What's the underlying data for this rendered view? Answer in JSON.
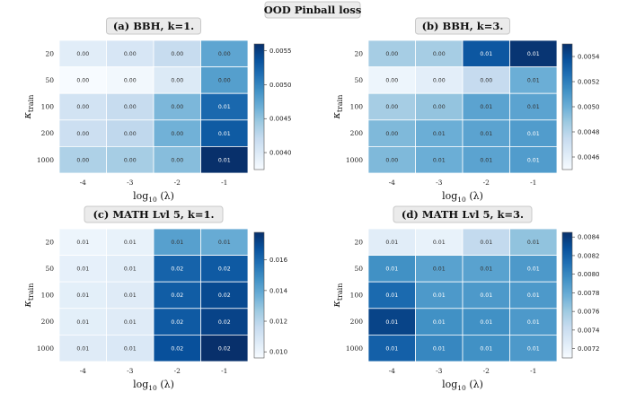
{
  "figure_title": "OOD Pinball loss",
  "chart_data": [
    {
      "type": "heatmap",
      "title": "(a) BBH, k=1.",
      "xlabel_main": "log",
      "xlabel_sub": "10",
      "xlabel_tail": "(λ)",
      "ylabel_main": "κ",
      "ylabel_sub": "train",
      "x_categories": [
        "-4",
        "-3",
        "-2",
        "-1"
      ],
      "y_categories": [
        "20",
        "50",
        "100",
        "200",
        "1000"
      ],
      "values": [
        [
          0.00395,
          0.00405,
          0.0042,
          0.00475
        ],
        [
          0.00375,
          0.0038,
          0.004,
          0.0048
        ],
        [
          0.0041,
          0.0042,
          0.0046,
          0.0052
        ],
        [
          0.00415,
          0.00425,
          0.00465,
          0.0053
        ],
        [
          0.00435,
          0.0044,
          0.00455,
          0.0056
        ]
      ],
      "labels": [
        [
          "0.00",
          "0.00",
          "0.00",
          "0.00"
        ],
        [
          "0.00",
          "0.00",
          "0.00",
          "0.00"
        ],
        [
          "0.00",
          "0.00",
          "0.00",
          "0.01"
        ],
        [
          "0.00",
          "0.00",
          "0.00",
          "0.01"
        ],
        [
          "0.00",
          "0.00",
          "0.00",
          "0.01"
        ]
      ],
      "vmin": 0.00375,
      "vmax": 0.0056,
      "colorbar_ticks": [
        0.004,
        0.0045,
        0.005,
        0.0055
      ],
      "colorbar_tick_labels": [
        "0.0040",
        "0.0045",
        "0.0050",
        "0.0055"
      ]
    },
    {
      "type": "heatmap",
      "title": "(b) BBH, k=3.",
      "xlabel_main": "log",
      "xlabel_sub": "10",
      "xlabel_tail": "(λ)",
      "ylabel_main": "κ",
      "ylabel_sub": "train",
      "x_categories": [
        "-4",
        "-3",
        "-2",
        "-1"
      ],
      "y_categories": [
        "20",
        "50",
        "100",
        "200",
        "1000"
      ],
      "values": [
        [
          0.00485,
          0.00485,
          0.00535,
          0.00548
        ],
        [
          0.00455,
          0.0046,
          0.00475,
          0.005
        ],
        [
          0.00485,
          0.0049,
          0.00505,
          0.00505
        ],
        [
          0.00495,
          0.005,
          0.00505,
          0.00508
        ],
        [
          0.00495,
          0.005,
          0.00505,
          0.00508
        ]
      ],
      "labels": [
        [
          "0.00",
          "0.00",
          "0.01",
          "0.01"
        ],
        [
          "0.00",
          "0.00",
          "0.00",
          "0.01"
        ],
        [
          "0.00",
          "0.00",
          "0.01",
          "0.01"
        ],
        [
          "0.00",
          "0.01",
          "0.01",
          "0.01"
        ],
        [
          "0.00",
          "0.01",
          "0.01",
          "0.01"
        ]
      ],
      "vmin": 0.0045,
      "vmax": 0.0055,
      "colorbar_ticks": [
        0.0046,
        0.0048,
        0.005,
        0.0052,
        0.0054
      ],
      "colorbar_tick_labels": [
        "0.0046",
        "0.0048",
        "0.0050",
        "0.0052",
        "0.0054"
      ]
    },
    {
      "type": "heatmap",
      "title": "(c) MATH Lvl 5, k=1.",
      "xlabel_main": "log",
      "xlabel_sub": "10",
      "xlabel_tail": "(λ)",
      "ylabel_main": "κ",
      "ylabel_sub": "train",
      "x_categories": [
        "-4",
        "-3",
        "-2",
        "-1"
      ],
      "y_categories": [
        "20",
        "50",
        "100",
        "200",
        "1000"
      ],
      "values": [
        [
          0.01,
          0.0102,
          0.0142,
          0.0138
        ],
        [
          0.0103,
          0.0105,
          0.0162,
          0.0165
        ],
        [
          0.0104,
          0.0106,
          0.0164,
          0.017
        ],
        [
          0.0104,
          0.0106,
          0.0165,
          0.0172
        ],
        [
          0.0106,
          0.0108,
          0.0168,
          0.0178
        ]
      ],
      "labels": [
        [
          "0.01",
          "0.01",
          "0.01",
          "0.01"
        ],
        [
          "0.01",
          "0.01",
          "0.02",
          "0.02"
        ],
        [
          "0.01",
          "0.01",
          "0.02",
          "0.02"
        ],
        [
          "0.01",
          "0.01",
          "0.02",
          "0.02"
        ],
        [
          "0.01",
          "0.01",
          "0.02",
          "0.02"
        ]
      ],
      "vmin": 0.0096,
      "vmax": 0.0178,
      "colorbar_ticks": [
        0.01,
        0.012,
        0.014,
        0.016
      ],
      "colorbar_tick_labels": [
        "0.010",
        "0.012",
        "0.014",
        "0.016"
      ]
    },
    {
      "type": "heatmap",
      "title": "(d) MATH Lvl 5, k=3.",
      "xlabel_main": "log",
      "xlabel_sub": "10",
      "xlabel_tail": "(λ)",
      "ylabel_main": "κ",
      "ylabel_sub": "train",
      "x_categories": [
        "-4",
        "-3",
        "-2",
        "-1"
      ],
      "y_categories": [
        "20",
        "50",
        "100",
        "200",
        "1000"
      ],
      "values": [
        [
          0.00725,
          0.0072,
          0.00745,
          0.00765
        ],
        [
          0.00795,
          0.00785,
          0.00785,
          0.0079
        ],
        [
          0.00815,
          0.0079,
          0.0079,
          0.0079
        ],
        [
          0.00835,
          0.00795,
          0.00795,
          0.0079
        ],
        [
          0.0082,
          0.008,
          0.00795,
          0.0079
        ]
      ],
      "labels": [
        [
          "0.01",
          "0.01",
          "0.01",
          "0.01"
        ],
        [
          "0.01",
          "0.01",
          "0.01",
          "0.01"
        ],
        [
          "0.01",
          "0.01",
          "0.01",
          "0.01"
        ],
        [
          "0.01",
          "0.01",
          "0.01",
          "0.01"
        ],
        [
          "0.01",
          "0.01",
          "0.01",
          "0.01"
        ]
      ],
      "vmin": 0.0071,
      "vmax": 0.00845,
      "colorbar_ticks": [
        0.0072,
        0.0074,
        0.0076,
        0.0078,
        0.008,
        0.0082,
        0.0084
      ],
      "colorbar_tick_labels": [
        "0.0072",
        "0.0074",
        "0.0076",
        "0.0078",
        "0.0080",
        "0.0082",
        "0.0084"
      ]
    }
  ],
  "colors": {
    "scale": [
      "#f7fbff",
      "#deebf7",
      "#c6dbef",
      "#9ecae1",
      "#6baed6",
      "#4292c6",
      "#2171b5",
      "#08519c",
      "#08306b"
    ],
    "grid": "#ffffff",
    "title_bg": "#ebebeb"
  }
}
